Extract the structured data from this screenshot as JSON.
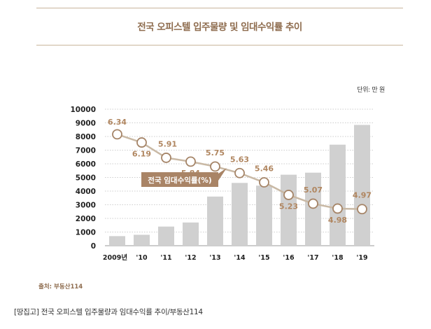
{
  "header": {
    "title": "전국 오피스텔 입주물량 및 임대수익률 추이"
  },
  "unit_label": "단위: 만 원",
  "source_label": "출처: 부동산114",
  "caption": "[땅집고] 전국 오피스텔 입주물량과 임대수익률 추이/부동산114",
  "colors": {
    "bar": "#d0d0d0",
    "line": "#c9b9a5",
    "marker_stroke": "#a58467",
    "label": "#b08660",
    "badge": "#a98466",
    "title": "#8e6c4e"
  },
  "chart_data": {
    "type": "bar",
    "title": "전국 오피스텔 입주물량 및 임대수익률 추이",
    "categories": [
      "2009년",
      "'10",
      "'11",
      "'12",
      "'13",
      "'14",
      "'15",
      "'16",
      "'17",
      "'18",
      "'19"
    ],
    "ylim": [
      0,
      10000
    ],
    "yticks": [
      0,
      1000,
      2000,
      3000,
      4000,
      5000,
      6000,
      7000,
      8000,
      9000,
      10000
    ],
    "grid": "horizontal-dotted",
    "series": [
      {
        "type": "bar",
        "values": [
          700,
          800,
          1400,
          1700,
          3600,
          4600,
          4400,
          5200,
          5350,
          7400,
          8850
        ]
      },
      {
        "type": "line",
        "name": "전국 임대수익률(%)",
        "ylim": [
          4.3,
          6.8
        ],
        "values": [
          6.34,
          6.19,
          5.91,
          5.84,
          5.75,
          5.63,
          5.46,
          5.23,
          5.07,
          4.98,
          4.97
        ]
      }
    ]
  }
}
